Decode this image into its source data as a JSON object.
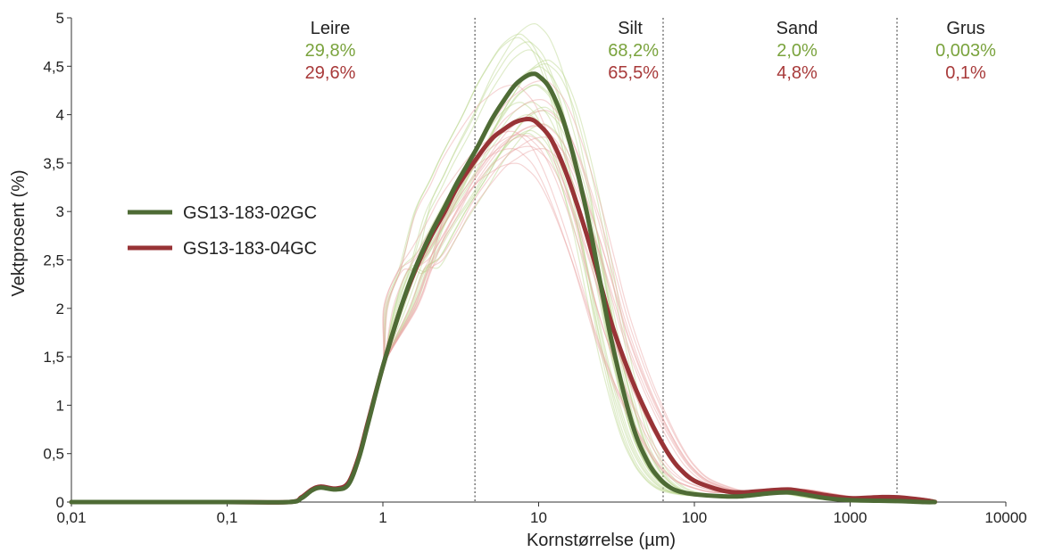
{
  "chart_data": {
    "type": "line",
    "xlabel": "Kornstørrelse (µm)",
    "ylabel": "Vektprosent (%)",
    "xscale": "log",
    "xlim": [
      0.01,
      10000
    ],
    "ylim": [
      0,
      5
    ],
    "x_ticks": [
      {
        "value": 0.01,
        "label": "0,01"
      },
      {
        "value": 0.1,
        "label": "0,1"
      },
      {
        "value": 1,
        "label": "1"
      },
      {
        "value": 10,
        "label": "10"
      },
      {
        "value": 100,
        "label": "100"
      },
      {
        "value": 1000,
        "label": "1000"
      },
      {
        "value": 10000,
        "label": "10000"
      }
    ],
    "y_ticks": [
      {
        "value": 0,
        "label": "0"
      },
      {
        "value": 0.5,
        "label": "0,5"
      },
      {
        "value": 1,
        "label": "1"
      },
      {
        "value": 1.5,
        "label": "1,5"
      },
      {
        "value": 2,
        "label": "2"
      },
      {
        "value": 2.5,
        "label": "2,5"
      },
      {
        "value": 3,
        "label": "3"
      },
      {
        "value": 3.5,
        "label": "3,5"
      },
      {
        "value": 4,
        "label": "4"
      },
      {
        "value": 4.5,
        "label": "4,5"
      },
      {
        "value": 5,
        "label": "5"
      }
    ],
    "class_boundaries": [
      3.9,
      63,
      2000
    ],
    "grain_classes": [
      {
        "name": "Leire",
        "green_pct": "29,8%",
        "red_pct": "29,6%"
      },
      {
        "name": "Silt",
        "green_pct": "68,2%",
        "red_pct": "65,5%"
      },
      {
        "name": "Sand",
        "green_pct": "2,0%",
        "red_pct": "4,8%"
      },
      {
        "name": "Grus",
        "green_pct": "0,003%",
        "red_pct": "0,1%"
      }
    ],
    "series": [
      {
        "name": "GS13-183-02GC",
        "color": "#4e6b35",
        "x": [
          0.01,
          0.1,
          0.25,
          0.3,
          0.35,
          0.4,
          0.5,
          0.6,
          0.7,
          0.8,
          1,
          1.3,
          1.6,
          2,
          2.5,
          3,
          4,
          5,
          6,
          7,
          8,
          9,
          10,
          12,
          15,
          20,
          25,
          30,
          40,
          50,
          60,
          70,
          80,
          100,
          150,
          200,
          300,
          400,
          500,
          700,
          1000,
          2000,
          3000,
          3500
        ],
        "values": [
          0,
          0,
          0,
          0.04,
          0.12,
          0.15,
          0.13,
          0.18,
          0.45,
          0.8,
          1.4,
          2.0,
          2.4,
          2.75,
          3.05,
          3.3,
          3.65,
          3.95,
          4.15,
          4.3,
          4.38,
          4.42,
          4.4,
          4.25,
          3.85,
          3.05,
          2.25,
          1.6,
          0.8,
          0.42,
          0.24,
          0.15,
          0.11,
          0.08,
          0.06,
          0.06,
          0.09,
          0.1,
          0.08,
          0.04,
          0.02,
          0.01,
          0.0,
          0
        ]
      },
      {
        "name": "GS13-183-04GC",
        "color": "#983336",
        "x": [
          0.01,
          0.1,
          0.25,
          0.3,
          0.35,
          0.4,
          0.5,
          0.6,
          0.7,
          0.8,
          1,
          1.3,
          1.6,
          2,
          2.5,
          3,
          4,
          5,
          6,
          7,
          8,
          9,
          10,
          12,
          15,
          20,
          25,
          30,
          40,
          50,
          60,
          70,
          80,
          100,
          150,
          200,
          300,
          400,
          500,
          700,
          1000,
          1500,
          2000,
          3000,
          3500
        ],
        "values": [
          0,
          0,
          0,
          0.05,
          0.13,
          0.16,
          0.14,
          0.2,
          0.47,
          0.82,
          1.4,
          2.0,
          2.38,
          2.72,
          3.0,
          3.25,
          3.55,
          3.75,
          3.85,
          3.92,
          3.95,
          3.95,
          3.9,
          3.75,
          3.4,
          2.8,
          2.25,
          1.8,
          1.25,
          0.9,
          0.65,
          0.47,
          0.35,
          0.22,
          0.12,
          0.1,
          0.12,
          0.13,
          0.11,
          0.07,
          0.04,
          0.05,
          0.05,
          0.02,
          0
        ]
      }
    ]
  }
}
